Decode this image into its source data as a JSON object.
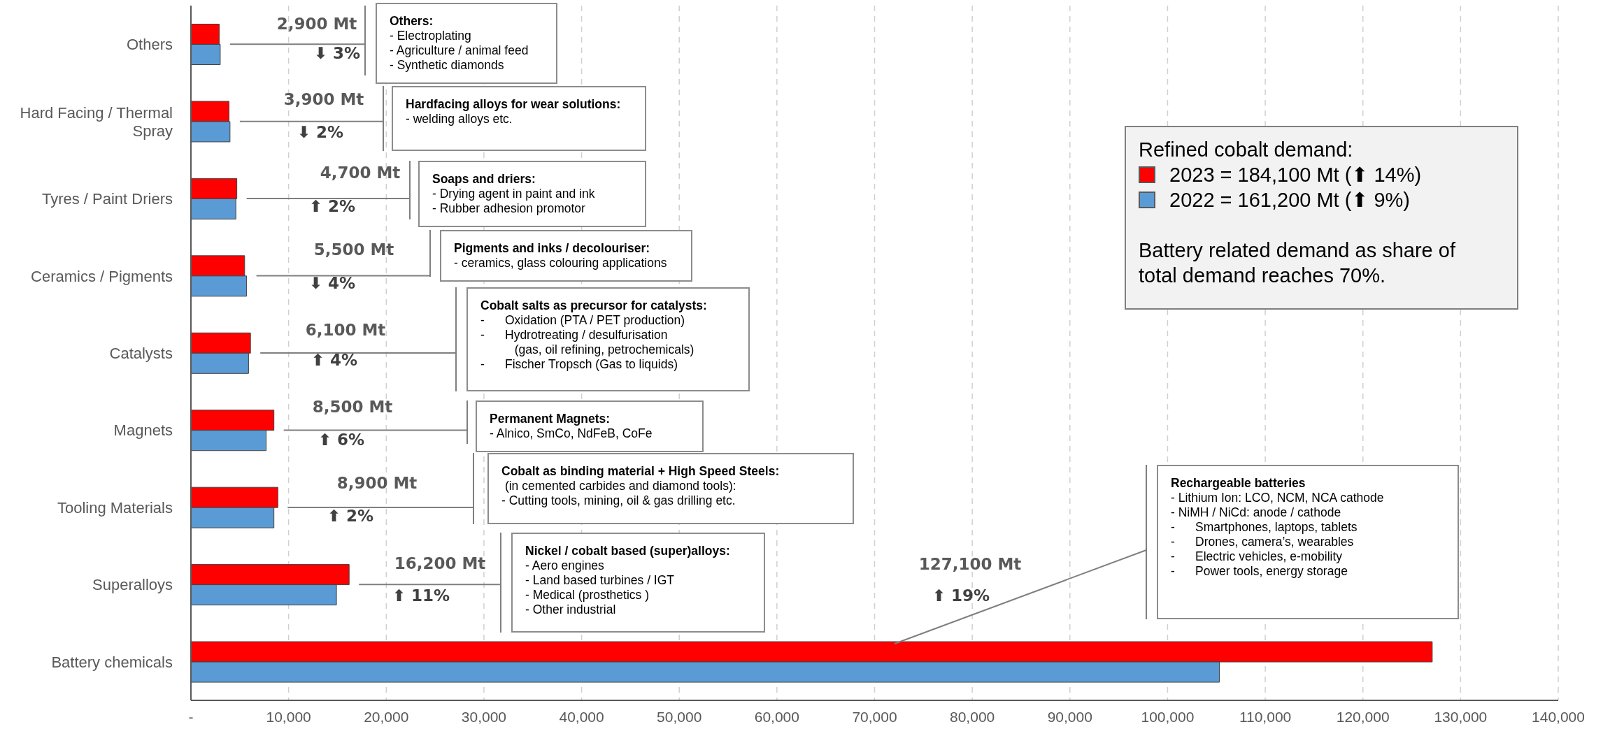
{
  "chart_data": {
    "type": "bar",
    "orientation": "horizontal",
    "categories": [
      "Others",
      "Hard Facing / Thermal Spray",
      "Tyres / Paint Driers",
      "Ceramics / Pigments",
      "Catalysts",
      "Magnets",
      "Tooling Materials",
      "Superalloys",
      "Battery chemicals"
    ],
    "series": [
      {
        "name": "2023 = 184,100 Mt (⬆ 14%)",
        "color": "#ff0000",
        "values": [
          2900,
          3900,
          4700,
          5500,
          6100,
          8500,
          8900,
          16200,
          127100
        ]
      },
      {
        "name": "2022 = 161,200 Mt (⬆ 9%)",
        "color": "#5b9bd5",
        "values": [
          3000,
          4000,
          4600,
          5700,
          5900,
          7700,
          8500,
          14900,
          105300
        ]
      }
    ],
    "xlim": [
      0,
      140000
    ],
    "xticks": [
      {
        "value": 0,
        "label": "-"
      },
      {
        "value": 10000,
        "label": "10,000"
      },
      {
        "value": 20000,
        "label": "20,000"
      },
      {
        "value": 30000,
        "label": "30,000"
      },
      {
        "value": 40000,
        "label": "40,000"
      },
      {
        "value": 50000,
        "label": "50,000"
      },
      {
        "value": 60000,
        "label": "60,000"
      },
      {
        "value": 70000,
        "label": "70,000"
      },
      {
        "value": 80000,
        "label": "80,000"
      },
      {
        "value": 90000,
        "label": "90,000"
      },
      {
        "value": 100000,
        "label": "100,000"
      },
      {
        "value": 110000,
        "label": "110,000"
      },
      {
        "value": 120000,
        "label": "120,000"
      },
      {
        "value": 130000,
        "label": "130,000"
      },
      {
        "value": 140000,
        "label": "140,000"
      }
    ],
    "grid": "x",
    "legend": "top right",
    "legend_title": "Refined cobalt demand:",
    "annotations": [
      "2,900 Mt",
      "3,900 Mt",
      "4,700 Mt",
      "5,500 Mt",
      "6,100 Mt",
      "8,500 Mt",
      "8,900 Mt",
      "16,200 Mt",
      "127,100 Mt",
      "⬇ 3%",
      "⬇ 2%",
      "⬆ 2%",
      "⬇ 4%",
      "⬆ 4%",
      "⬆ 6%",
      "⬆ 2%",
      "⬆ 11%",
      "⬆ 19%",
      "Others:\n- Electroplating\n- Agriculture / animal feed\n- Synthetic diamonds",
      "Hardfacing alloys for wear solutions:\n- welding alloys etc.",
      "Soaps and driers:\n- Drying agent in paint and ink\n- Rubber adhesion promotor",
      "Pigments and inks / decolouriser:\n- ceramics, glass colouring applications",
      "Cobalt salts as precursor for catalysts:\n-      Oxidation (PTA / PET production)\n-      Hydrotreating / desulfurisation\n          (gas, oil refining, petrochemicals)\n-      Fischer Tropsch (Gas to liquids)",
      "Permanent Magnets:\n- Alnico, SmCo, NdFeB, CoFe",
      "Cobalt as binding material + High Speed Steels:\n (in cemented carbides and diamond tools):\n- Cutting tools, mining, oil & gas drilling etc.",
      "Nickel / cobalt based (super)alloys:\n- Aero engines\n- Land based turbines / IGT\n- Medical (prosthetics )\n- Other industrial",
      "Rechargeable batteries\n- Lithium Ion: LCO, NCM, NCA cathode\n- NiMH / NiCd: anode / cathode\n-      Smartphones, laptops, tablets\n-      Drones, camera’s, wearables\n-      Electric vehicles, e-mobility\n-      Power tools, energy storage",
      "Battery related demand as share of total demand reaches 70%."
    ]
  }
}
